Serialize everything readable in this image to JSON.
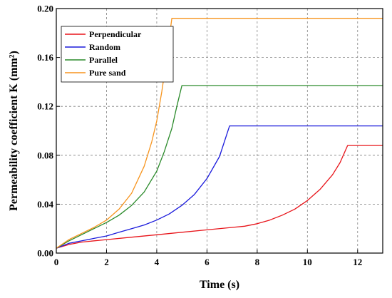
{
  "chart_data": {
    "type": "line",
    "xlabel": "Time (s)",
    "ylabel": "Permeability coefficient K (mm²)",
    "xlim": [
      0,
      13
    ],
    "ylim": [
      0,
      0.2
    ],
    "x_ticks": [
      0,
      2,
      4,
      6,
      8,
      10,
      12
    ],
    "y_ticks": [
      0.0,
      0.04,
      0.08,
      0.12,
      0.16,
      0.2
    ],
    "y_tick_labels": [
      "0.00",
      "0.04",
      "0.08",
      "0.12",
      "0.16",
      "0.20"
    ],
    "grid": true,
    "legend_position": "top-left",
    "series": [
      {
        "name": "Perpendicular",
        "color": "#e8141a",
        "x": [
          0,
          0.5,
          1,
          2,
          3,
          4,
          5,
          6,
          7,
          7.5,
          8,
          8.5,
          9,
          9.5,
          10,
          10.5,
          11,
          11.3,
          11.6,
          12,
          13
        ],
        "y": [
          0.004,
          0.007,
          0.009,
          0.011,
          0.013,
          0.015,
          0.017,
          0.019,
          0.021,
          0.022,
          0.024,
          0.027,
          0.031,
          0.036,
          0.043,
          0.052,
          0.064,
          0.074,
          0.088,
          0.088,
          0.088
        ]
      },
      {
        "name": "Random",
        "color": "#1a1adc",
        "x": [
          0,
          0.5,
          1,
          1.5,
          2,
          2.5,
          3,
          3.5,
          4,
          4.5,
          5,
          5.5,
          6,
          6.5,
          6.9,
          8,
          10,
          12,
          13
        ],
        "y": [
          0.004,
          0.008,
          0.01,
          0.012,
          0.014,
          0.017,
          0.02,
          0.023,
          0.027,
          0.032,
          0.039,
          0.048,
          0.061,
          0.079,
          0.104,
          0.104,
          0.104,
          0.104,
          0.104
        ]
      },
      {
        "name": "Parallel",
        "color": "#2a8a2a",
        "x": [
          0,
          0.5,
          1,
          1.5,
          2,
          2.5,
          3,
          3.5,
          4,
          4.3,
          4.6,
          4.8,
          5,
          6,
          8,
          10,
          12,
          13
        ],
        "y": [
          0.004,
          0.01,
          0.015,
          0.02,
          0.025,
          0.031,
          0.039,
          0.05,
          0.067,
          0.083,
          0.102,
          0.12,
          0.137,
          0.137,
          0.137,
          0.137,
          0.137,
          0.137
        ]
      },
      {
        "name": "Pure sand",
        "color": "#f7941d",
        "x": [
          0,
          0.5,
          1,
          1.5,
          2,
          2.5,
          3,
          3.5,
          3.8,
          4,
          4.2,
          4.4,
          4.6,
          5,
          6,
          8,
          10,
          12,
          13
        ],
        "y": [
          0.004,
          0.011,
          0.016,
          0.021,
          0.027,
          0.036,
          0.049,
          0.071,
          0.091,
          0.108,
          0.132,
          0.16,
          0.192,
          0.192,
          0.192,
          0.192,
          0.192,
          0.192,
          0.192
        ]
      }
    ]
  }
}
